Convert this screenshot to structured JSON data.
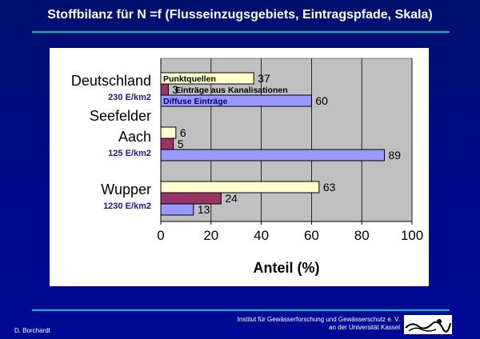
{
  "slide": {
    "title": "Stoffbilanz für N =f (Flusseinzugsgebiets, Eintragspfade, Skala)",
    "author": "D. Borchardt",
    "institute_line1": "Institut für Gewässerforschung  und Gewässerschutz e. V.",
    "institute_line2": "an der Universität Kassel"
  },
  "colors": {
    "background": "#000a8a",
    "rule": "#00c0c0",
    "plot_area": "#c0c0c0",
    "punktquellen": "#ffffcc",
    "kanalisation": "#993366",
    "diffuse": "#9999ff",
    "density_label": "#1a1a8c"
  },
  "chart_data": {
    "type": "bar",
    "orientation": "horizontal",
    "xlabel": "Anteil (%)",
    "xlim": [
      0,
      100
    ],
    "xticks": [
      0,
      20,
      40,
      60,
      80,
      100
    ],
    "grid": true,
    "legend": "inside-top-left",
    "categories": [
      {
        "name_lines": [
          "Deutschland"
        ],
        "density": "230 E/km2"
      },
      {
        "name_lines": [
          "Seefelder",
          "Aach"
        ],
        "density": "125 E/km2"
      },
      {
        "name_lines": [
          "Wupper"
        ],
        "density": "1230 E/km2"
      }
    ],
    "series": [
      {
        "name": "Punktquellen",
        "values": [
          37,
          6,
          63
        ]
      },
      {
        "name": "Einträge aus Kanalisationen",
        "values": [
          3,
          5,
          24
        ]
      },
      {
        "name": "Diffuse Einträge",
        "values": [
          60,
          89,
          13
        ]
      }
    ]
  }
}
